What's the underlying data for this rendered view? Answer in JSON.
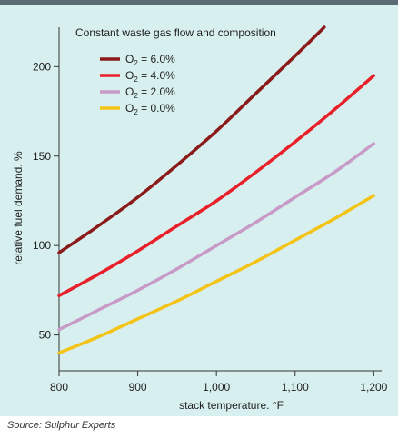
{
  "source": "Source: Sulphur Experts",
  "chart_data": {
    "type": "line",
    "title": "",
    "xlabel": "stack temperature. °F",
    "ylabel": "relative fuel demand. %",
    "xlim": [
      800,
      1210
    ],
    "ylim": [
      30,
      222
    ],
    "x_ticks": [
      800,
      900,
      1000,
      1100,
      1200
    ],
    "x_tick_labels": [
      "800",
      "900",
      "1,000",
      "1,100",
      "1,200"
    ],
    "y_ticks": [
      50,
      100,
      150,
      200
    ],
    "y_tick_labels": [
      "50",
      "100",
      "150",
      "200"
    ],
    "grid": false,
    "legend": {
      "placement": "top-left",
      "heading": "Constant waste gas flow and composition"
    },
    "series": [
      {
        "name": "O2 = 6.0%",
        "label_prefix": "O",
        "label_sub": "2",
        "label_suffix": " = 6.0%",
        "color": "#8b1a1a",
        "points": [
          [
            800,
            96
          ],
          [
            850,
            111
          ],
          [
            900,
            127
          ],
          [
            950,
            145
          ],
          [
            1000,
            164
          ],
          [
            1050,
            185
          ],
          [
            1100,
            206
          ],
          [
            1137,
            222
          ]
        ]
      },
      {
        "name": "O2 = 4.0%",
        "label_prefix": "O",
        "label_sub": "2",
        "label_suffix": " = 4.0%",
        "color": "#e8202a",
        "points": [
          [
            800,
            72
          ],
          [
            850,
            84
          ],
          [
            900,
            97
          ],
          [
            950,
            111
          ],
          [
            1000,
            125
          ],
          [
            1050,
            141
          ],
          [
            1100,
            158
          ],
          [
            1150,
            176
          ],
          [
            1200,
            195
          ]
        ]
      },
      {
        "name": "O2 = 2.0%",
        "label_prefix": "O",
        "label_sub": "2",
        "label_suffix": " = 2.0%",
        "color": "#c79ac7",
        "points": [
          [
            800,
            53
          ],
          [
            850,
            64
          ],
          [
            900,
            75
          ],
          [
            950,
            87
          ],
          [
            1000,
            100
          ],
          [
            1050,
            113
          ],
          [
            1100,
            127
          ],
          [
            1150,
            141
          ],
          [
            1200,
            157
          ]
        ]
      },
      {
        "name": "O2 = 0.0%",
        "label_prefix": "O",
        "label_sub": "2",
        "label_suffix": " = 0.0%",
        "color": "#f3c316",
        "points": [
          [
            800,
            40
          ],
          [
            850,
            49
          ],
          [
            900,
            59
          ],
          [
            950,
            69
          ],
          [
            1000,
            80
          ],
          [
            1050,
            91
          ],
          [
            1100,
            103
          ],
          [
            1150,
            115
          ],
          [
            1200,
            128
          ]
        ]
      }
    ]
  }
}
